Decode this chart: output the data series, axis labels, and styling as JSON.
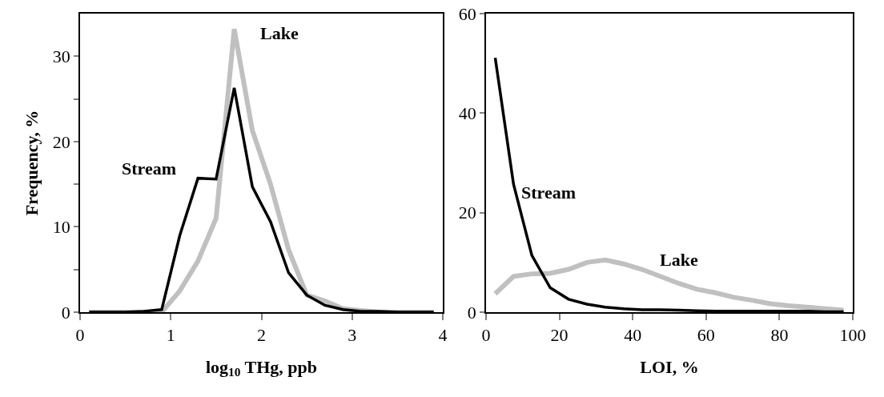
{
  "chart_data": [
    {
      "type": "line",
      "xlabel": "log$_{10}$ THg, ppb",
      "ylabel": "Frequency, %",
      "xlim": [
        0,
        4
      ],
      "xticks": [
        0,
        1,
        2,
        3,
        4
      ],
      "ylim": [
        0,
        35
      ],
      "yticks": [
        0,
        {
          "value": 5,
          "label": null
        },
        10,
        {
          "value": 15,
          "label": null
        },
        20,
        {
          "value": 25,
          "label": null
        },
        30
      ],
      "legend": false,
      "marker": "none",
      "line_style": "solid",
      "x": [
        0.1,
        0.3,
        0.5,
        0.7,
        0.9,
        1.1,
        1.3,
        1.5,
        1.7,
        1.9,
        2.1,
        2.3,
        2.5,
        2.7,
        2.9,
        3.1,
        3.3,
        3.5,
        3.7,
        3.9
      ],
      "series": [
        {
          "name": "Lake",
          "color": "#c0c0c0",
          "values": [
            0,
            0,
            0,
            0,
            0,
            2.5,
            6,
            11,
            33.2,
            21.3,
            15,
            7.3,
            2,
            1.3,
            0.4,
            0.2,
            0,
            0,
            0,
            0
          ]
        },
        {
          "name": "Stream",
          "color": "#000000",
          "values": [
            0,
            0,
            0,
            0.1,
            0.3,
            9,
            15.7,
            15.6,
            26.3,
            14.7,
            10.6,
            4.6,
            2,
            0.8,
            0.3,
            0.1,
            0.1,
            0,
            0,
            0
          ]
        }
      ]
    },
    {
      "type": "line",
      "xlabel": "LOI, %",
      "xlim": [
        0,
        100
      ],
      "xticks": [
        0,
        20,
        40,
        60,
        80,
        100
      ],
      "ylim": [
        0,
        60
      ],
      "yticks": [
        0,
        20,
        40,
        60
      ],
      "legend": false,
      "marker": "none",
      "line_style": "solid",
      "x": [
        2.5,
        7.5,
        12.5,
        17.5,
        22.5,
        27.5,
        32.5,
        37.5,
        42.5,
        47.5,
        52.5,
        57.5,
        62.5,
        67.5,
        72.5,
        77.5,
        82.5,
        87.5,
        92.5,
        97.5
      ],
      "series": [
        {
          "name": "Lake",
          "color": "#c0c0c0",
          "values": [
            3.7,
            7.2,
            7.7,
            7.8,
            8.6,
            10,
            10.5,
            9.7,
            8.6,
            7.2,
            5.8,
            4.6,
            3.9,
            3,
            2.4,
            1.7,
            1.3,
            1,
            0.7,
            0.4
          ]
        },
        {
          "name": "Stream",
          "color": "#000000",
          "values": [
            51.1,
            25.7,
            11.4,
            4.9,
            2.6,
            1.6,
            1,
            0.7,
            0.5,
            0.5,
            0.4,
            0.3,
            0.2,
            0.2,
            0.2,
            0.2,
            0.2,
            0.2,
            0.1,
            0.1
          ]
        }
      ]
    }
  ]
}
